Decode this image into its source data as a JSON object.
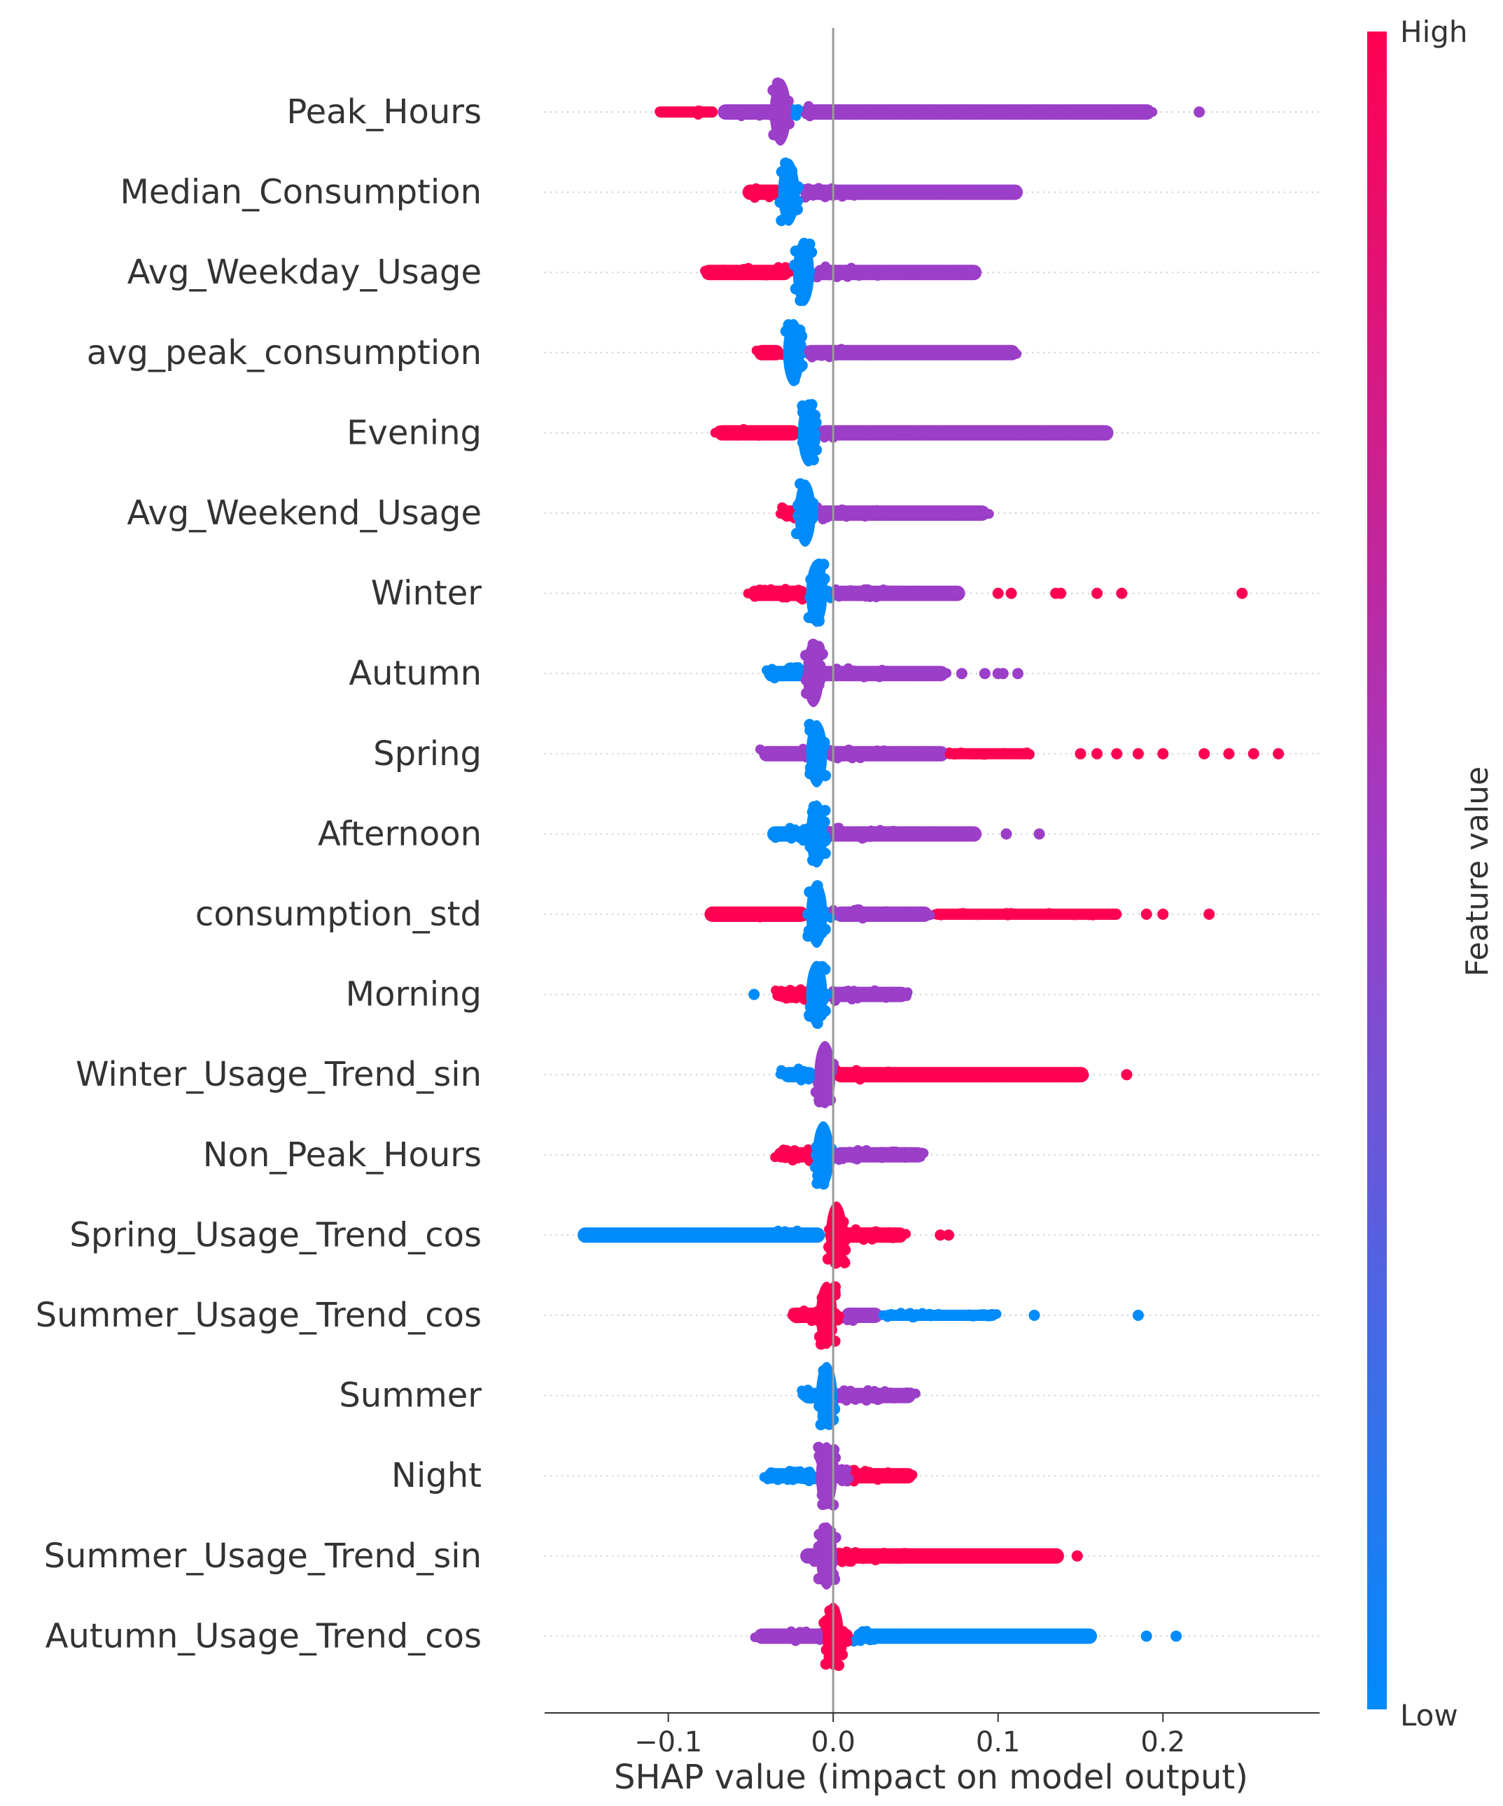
{
  "chart_data": {
    "type": "scatter",
    "subtype": "shap-beeswarm",
    "xlabel": "SHAP value (impact on model output)",
    "xlim": [
      -0.175,
      0.295
    ],
    "xticks": [
      {
        "value": -0.1,
        "label": "−0.1"
      },
      {
        "value": 0.0,
        "label": "0.0"
      },
      {
        "value": 0.1,
        "label": "0.1"
      },
      {
        "value": 0.2,
        "label": "0.2"
      }
    ],
    "zero_line": 0.0,
    "colorbar": {
      "label": "Feature value",
      "high_label": "High",
      "low_label": "Low",
      "low_color": "#008bfb",
      "mid_color": "#9b3ec8",
      "high_color": "#ff0052"
    },
    "features": [
      {
        "name": "Peak_Hours",
        "center": -0.032,
        "min": -0.108,
        "max": 0.195,
        "outliers": [
          0.222
        ],
        "bands": [
          {
            "from": -0.108,
            "to": -0.07,
            "color": "high"
          },
          {
            "from": -0.07,
            "to": -0.032,
            "color": "mid"
          },
          {
            "from": -0.032,
            "to": -0.02,
            "color": "low"
          },
          {
            "from": -0.02,
            "to": 0.195,
            "color": "mid"
          }
        ]
      },
      {
        "name": "Median_Consumption",
        "center": -0.027,
        "min": -0.055,
        "max": 0.115,
        "outliers": [],
        "bands": [
          {
            "from": -0.055,
            "to": -0.03,
            "color": "high"
          },
          {
            "from": -0.03,
            "to": -0.02,
            "color": "low"
          },
          {
            "from": -0.02,
            "to": 0.115,
            "color": "mid"
          }
        ]
      },
      {
        "name": "Avg_Weekday_Usage",
        "center": -0.018,
        "min": -0.08,
        "max": 0.09,
        "outliers": [],
        "bands": [
          {
            "from": -0.08,
            "to": -0.025,
            "color": "high"
          },
          {
            "from": -0.025,
            "to": -0.012,
            "color": "low"
          },
          {
            "from": -0.012,
            "to": 0.09,
            "color": "mid"
          }
        ]
      },
      {
        "name": "avg_peak_consumption",
        "center": -0.024,
        "min": -0.048,
        "max": 0.113,
        "outliers": [],
        "bands": [
          {
            "from": -0.048,
            "to": -0.03,
            "color": "high"
          },
          {
            "from": -0.03,
            "to": -0.018,
            "color": "low"
          },
          {
            "from": -0.018,
            "to": 0.113,
            "color": "mid"
          }
        ]
      },
      {
        "name": "Evening",
        "center": -0.015,
        "min": -0.072,
        "max": 0.17,
        "outliers": [],
        "bands": [
          {
            "from": -0.072,
            "to": -0.02,
            "color": "high"
          },
          {
            "from": -0.02,
            "to": -0.01,
            "color": "low"
          },
          {
            "from": -0.01,
            "to": 0.17,
            "color": "mid"
          }
        ]
      },
      {
        "name": "Avg_Weekend_Usage",
        "center": -0.017,
        "min": -0.033,
        "max": 0.095,
        "outliers": [],
        "bands": [
          {
            "from": -0.033,
            "to": -0.02,
            "color": "high"
          },
          {
            "from": -0.02,
            "to": -0.01,
            "color": "low"
          },
          {
            "from": -0.01,
            "to": 0.095,
            "color": "mid"
          }
        ]
      },
      {
        "name": "Winter",
        "center": -0.01,
        "min": -0.052,
        "max": 0.08,
        "outliers": [
          0.1,
          0.108,
          0.135,
          0.138,
          0.16,
          0.175,
          0.248
        ],
        "bands": [
          {
            "from": -0.052,
            "to": -0.015,
            "color": "high"
          },
          {
            "from": -0.015,
            "to": 0.0,
            "color": "low"
          },
          {
            "from": 0.0,
            "to": 0.08,
            "color": "mid"
          }
        ]
      },
      {
        "name": "Autumn",
        "center": -0.012,
        "min": -0.042,
        "max": 0.07,
        "outliers": [
          0.078,
          0.092,
          0.1,
          0.103,
          0.112
        ],
        "bands": [
          {
            "from": -0.042,
            "to": -0.015,
            "color": "low"
          },
          {
            "from": -0.015,
            "to": 0.07,
            "color": "mid"
          }
        ]
      },
      {
        "name": "Spring",
        "center": -0.01,
        "min": -0.045,
        "max": 0.12,
        "outliers": [
          0.15,
          0.16,
          0.172,
          0.185,
          0.2,
          0.225,
          0.24,
          0.255,
          0.27
        ],
        "bands": [
          {
            "from": -0.045,
            "to": -0.015,
            "color": "mid"
          },
          {
            "from": -0.015,
            "to": -0.005,
            "color": "low"
          },
          {
            "from": -0.005,
            "to": 0.07,
            "color": "mid"
          },
          {
            "from": 0.07,
            "to": 0.12,
            "color": "high"
          }
        ]
      },
      {
        "name": "Afternoon",
        "center": -0.01,
        "min": -0.04,
        "max": 0.09,
        "outliers": [
          0.105,
          0.125
        ],
        "bands": [
          {
            "from": -0.04,
            "to": -0.01,
            "color": "low"
          },
          {
            "from": -0.01,
            "to": 0.09,
            "color": "mid"
          }
        ]
      },
      {
        "name": "consumption_std",
        "center": -0.01,
        "min": -0.078,
        "max": 0.175,
        "outliers": [
          0.19,
          0.2,
          0.228
        ],
        "bands": [
          {
            "from": -0.078,
            "to": -0.015,
            "color": "high"
          },
          {
            "from": -0.015,
            "to": 0.0,
            "color": "low"
          },
          {
            "from": 0.0,
            "to": 0.06,
            "color": "mid"
          },
          {
            "from": 0.06,
            "to": 0.175,
            "color": "high"
          }
        ]
      },
      {
        "name": "Morning",
        "center": -0.01,
        "min": -0.035,
        "max": 0.046,
        "outliers": [
          -0.048
        ],
        "bands": [
          {
            "from": -0.035,
            "to": -0.012,
            "color": "high"
          },
          {
            "from": -0.012,
            "to": -0.002,
            "color": "low"
          },
          {
            "from": -0.002,
            "to": 0.046,
            "color": "mid"
          }
        ]
      },
      {
        "name": "Winter_Usage_Trend_sin",
        "center": -0.005,
        "min": -0.032,
        "max": 0.155,
        "outliers": [
          0.178
        ],
        "bands": [
          {
            "from": -0.032,
            "to": -0.01,
            "color": "low"
          },
          {
            "from": -0.01,
            "to": 0.0,
            "color": "mid"
          },
          {
            "from": 0.0,
            "to": 0.155,
            "color": "high"
          }
        ]
      },
      {
        "name": "Non_Peak_Hours",
        "center": -0.006,
        "min": -0.036,
        "max": 0.056,
        "outliers": [],
        "bands": [
          {
            "from": -0.036,
            "to": -0.01,
            "color": "high"
          },
          {
            "from": -0.01,
            "to": 0.0,
            "color": "low"
          },
          {
            "from": 0.0,
            "to": 0.056,
            "color": "mid"
          }
        ]
      },
      {
        "name": "Spring_Usage_Trend_cos",
        "center": 0.002,
        "min": -0.155,
        "max": 0.045,
        "outliers": [
          0.065,
          0.07
        ],
        "bands": [
          {
            "from": -0.155,
            "to": -0.005,
            "color": "low"
          },
          {
            "from": -0.005,
            "to": 0.045,
            "color": "high"
          }
        ]
      },
      {
        "name": "Summer_Usage_Trend_cos",
        "center": -0.004,
        "min": -0.027,
        "max": 0.1,
        "outliers": [
          0.122,
          0.185
        ],
        "bands": [
          {
            "from": -0.027,
            "to": 0.005,
            "color": "high"
          },
          {
            "from": 0.005,
            "to": 0.03,
            "color": "mid"
          },
          {
            "from": 0.03,
            "to": 0.1,
            "color": "low"
          }
        ]
      },
      {
        "name": "Summer",
        "center": -0.004,
        "min": -0.02,
        "max": 0.05,
        "outliers": [],
        "bands": [
          {
            "from": -0.02,
            "to": 0.0,
            "color": "low"
          },
          {
            "from": 0.0,
            "to": 0.05,
            "color": "mid"
          }
        ]
      },
      {
        "name": "Night",
        "center": -0.004,
        "min": -0.042,
        "max": 0.05,
        "outliers": [],
        "bands": [
          {
            "from": -0.042,
            "to": -0.01,
            "color": "low"
          },
          {
            "from": -0.01,
            "to": 0.01,
            "color": "mid"
          },
          {
            "from": 0.01,
            "to": 0.05,
            "color": "high"
          }
        ]
      },
      {
        "name": "Summer_Usage_Trend_sin",
        "center": -0.004,
        "min": -0.02,
        "max": 0.14,
        "outliers": [
          0.148
        ],
        "bands": [
          {
            "from": -0.02,
            "to": 0.0,
            "color": "mid"
          },
          {
            "from": 0.0,
            "to": 0.14,
            "color": "high"
          }
        ]
      },
      {
        "name": "Autumn_Usage_Trend_cos",
        "center": 0.0,
        "min": -0.048,
        "max": 0.16,
        "outliers": [
          0.19,
          0.208
        ],
        "bands": [
          {
            "from": -0.048,
            "to": -0.005,
            "color": "mid"
          },
          {
            "from": -0.005,
            "to": 0.012,
            "color": "high"
          },
          {
            "from": 0.012,
            "to": 0.16,
            "color": "low"
          }
        ]
      }
    ]
  }
}
